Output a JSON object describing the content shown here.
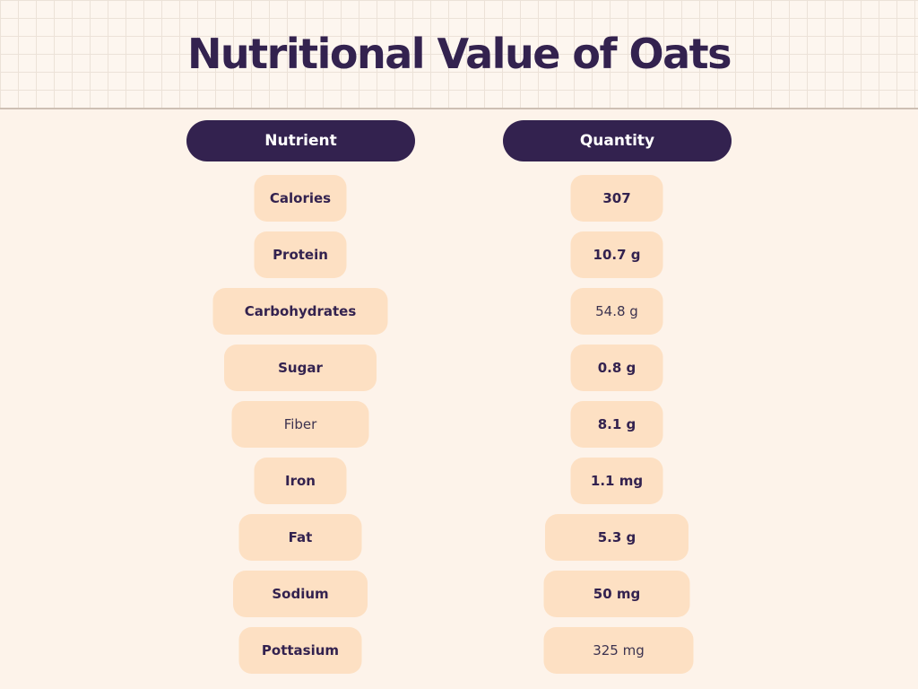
{
  "title": "Nutritional Value of Oats",
  "headers": {
    "nutrient": "Nutrient",
    "quantity": "Quantity"
  },
  "rows": [
    {
      "nutrient": "Calories",
      "quantity": "307"
    },
    {
      "nutrient": "Protein",
      "quantity": "10.7 g"
    },
    {
      "nutrient": "Carbohydrates",
      "quantity": "54.8 g"
    },
    {
      "nutrient": "Sugar",
      "quantity": "0.8 g"
    },
    {
      "nutrient": "Fiber",
      "quantity": "8.1 g"
    },
    {
      "nutrient": "Iron",
      "quantity": "1.1 mg"
    },
    {
      "nutrient": "Fat",
      "quantity": "5.3 g"
    },
    {
      "nutrient": "Sodium",
      "quantity": "50 mg"
    },
    {
      "nutrient": "Pottasium",
      "quantity": "325 mg"
    }
  ],
  "colors": {
    "background": "#fdf3ea",
    "header_fill": "#33224f",
    "pill_fill": "#fde0c3",
    "text": "#33224f"
  }
}
